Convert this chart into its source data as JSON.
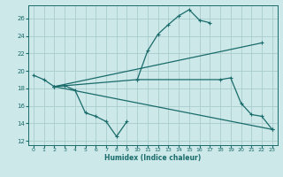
{
  "xlabel": "Humidex (Indice chaleur)",
  "bg_color": "#cce8e8",
  "grid_color": "#aacccc",
  "line_color": "#1a6b6b",
  "xlim": [
    -0.5,
    23.5
  ],
  "ylim": [
    11.5,
    27.5
  ],
  "yticks": [
    12,
    14,
    16,
    18,
    20,
    22,
    24,
    26
  ],
  "xticks": [
    0,
    1,
    2,
    3,
    4,
    5,
    6,
    7,
    8,
    9,
    10,
    11,
    12,
    13,
    14,
    15,
    16,
    17,
    18,
    19,
    20,
    21,
    22,
    23
  ],
  "series": [
    {
      "x": [
        0,
        1,
        2,
        3,
        4,
        5,
        6,
        7,
        8,
        9
      ],
      "y": [
        19.5,
        19.0,
        18.2,
        18.3,
        17.8,
        15.2,
        14.8,
        14.2,
        12.5,
        14.2
      ]
    },
    {
      "x": [
        10,
        11,
        12,
        13,
        14,
        15,
        16,
        17
      ],
      "y": [
        19.0,
        22.3,
        24.2,
        25.3,
        26.3,
        27.0,
        25.8,
        25.5
      ]
    },
    {
      "x": [
        2,
        23
      ],
      "y": [
        18.2,
        13.3
      ]
    },
    {
      "x": [
        2,
        22
      ],
      "y": [
        18.2,
        23.2
      ]
    },
    {
      "x": [
        2,
        10,
        18,
        19,
        20,
        21,
        22,
        23
      ],
      "y": [
        18.2,
        19.0,
        19.0,
        19.2,
        16.3,
        15.0,
        14.8,
        13.3
      ]
    }
  ]
}
